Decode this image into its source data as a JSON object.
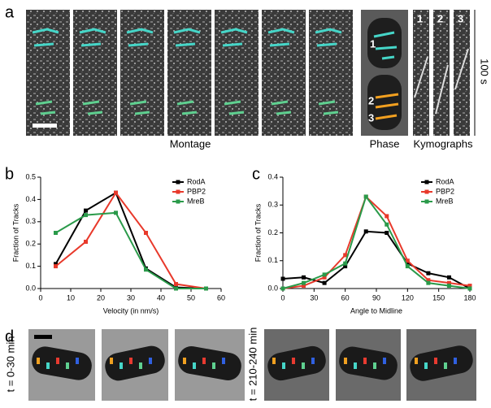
{
  "figure": {
    "panel_labels": [
      "a",
      "b",
      "c",
      "d"
    ],
    "montage_label": "Montage",
    "phase_label": "Phase",
    "kymographs_label": "Kymographs",
    "time_scale": "100 s",
    "track_numbers": [
      "1",
      "2",
      "3"
    ],
    "kymograph_numbers": [
      "1",
      "2",
      "3"
    ],
    "time_labels": [
      "t = 0-30 min",
      "t = 210-240 min"
    ]
  },
  "chart_data": [
    {
      "type": "line",
      "x_label": "Velocity (in nm/s)",
      "y_label": "Fraction of Tracks",
      "x": [
        5,
        15,
        25,
        35,
        45,
        55
      ],
      "xlim": [
        0,
        60
      ],
      "xticks": [
        0,
        10,
        20,
        30,
        40,
        50,
        60
      ],
      "ylim": [
        0,
        0.5
      ],
      "yticks": [
        {
          "value": 0,
          "label": "0.0"
        },
        0.1,
        0.2,
        0.3,
        0.4,
        0.5
      ],
      "legend": "upper right",
      "grid": false,
      "series": [
        {
          "name": "RodA",
          "color": "#000000",
          "values": [
            0.11,
            0.35,
            0.43,
            0.09,
            0.005,
            0.0
          ]
        },
        {
          "name": "PBP2",
          "color": "#e8392b",
          "values": [
            0.1,
            0.21,
            0.43,
            0.25,
            0.02,
            0.0
          ]
        },
        {
          "name": "MreB",
          "color": "#2a9a4a",
          "values": [
            0.25,
            0.33,
            0.34,
            0.085,
            0.0,
            0.0
          ]
        }
      ]
    },
    {
      "type": "line",
      "x_label": "Angle to Midline",
      "y_label": "Fraction of Tracks",
      "x": [
        0,
        20,
        40,
        60,
        80,
        100,
        120,
        140,
        160,
        180
      ],
      "xlim": [
        0,
        180
      ],
      "xticks": [
        0,
        30,
        60,
        90,
        120,
        150,
        180
      ],
      "ylim": [
        0,
        0.4
      ],
      "yticks": [
        {
          "value": 0,
          "label": "0.0"
        },
        0.1,
        0.2,
        0.3,
        0.4
      ],
      "legend": "upper right",
      "grid": false,
      "series": [
        {
          "name": "RodA",
          "color": "#000000",
          "values": [
            0.035,
            0.04,
            0.02,
            0.08,
            0.205,
            0.2,
            0.09,
            0.055,
            0.04,
            0.0
          ]
        },
        {
          "name": "PBP2",
          "color": "#e8392b",
          "values": [
            0.0,
            0.01,
            0.04,
            0.12,
            0.33,
            0.26,
            0.1,
            0.03,
            0.02,
            0.01
          ]
        },
        {
          "name": "MreB",
          "color": "#2a9a4a",
          "values": [
            0.0,
            0.02,
            0.05,
            0.09,
            0.33,
            0.23,
            0.08,
            0.02,
            0.01,
            0.0
          ]
        }
      ]
    }
  ]
}
